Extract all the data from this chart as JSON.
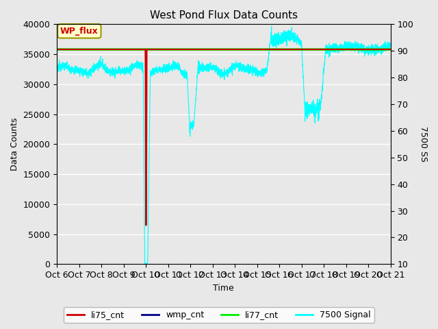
{
  "title": "West Pond Flux Data Counts",
  "xlabel": "Time",
  "ylabel_left": "Data Counts",
  "ylabel_right": "7500 SS",
  "ylim_left": [
    0,
    40000
  ],
  "ylim_right": [
    10,
    100
  ],
  "fig_facecolor": "#e8e8e8",
  "plot_facecolor": "#e8e8e8",
  "legend_labels": [
    "li75_cnt",
    "wmp_cnt",
    "li77_cnt",
    "7500 Signal"
  ],
  "legend_colors": [
    "#cc0000",
    "#00008b",
    "#00cc00",
    "#00cccc"
  ],
  "annotation_text": "WP_flux",
  "annotation_box_facecolor": "#ffffcc",
  "annotation_text_color": "#cc0000",
  "annotation_edge_color": "#999900",
  "x_tick_labels": [
    "Oct 6",
    "Oct 7",
    "Oct 8",
    "Oct 9",
    "Oct 10",
    "Oct 11",
    "Oct 12",
    "Oct 13",
    "Oct 14",
    "Oct 15",
    "Oct 16",
    "Oct 17",
    "Oct 18",
    "Oct 19",
    "Oct 20",
    "Oct 21"
  ],
  "li77_value": 35800,
  "right_axis_ticks": [
    10,
    20,
    30,
    40,
    50,
    60,
    70,
    80,
    90,
    100
  ],
  "left_yticks": [
    0,
    5000,
    10000,
    15000,
    20000,
    25000,
    30000,
    35000,
    40000
  ]
}
